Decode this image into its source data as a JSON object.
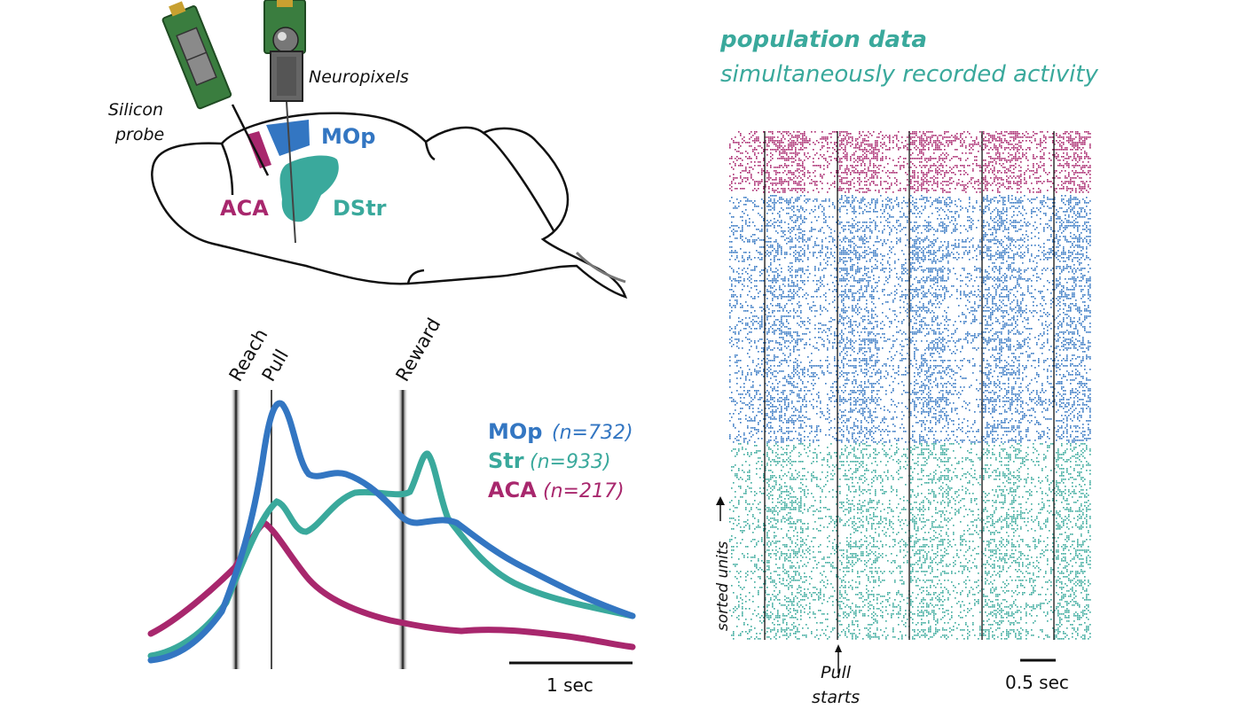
{
  "colors": {
    "mop": "#3376c2",
    "str": "#3aa99c",
    "aca": "#a8276d",
    "outline": "#111111",
    "probe_green": "#3a7d3f"
  },
  "brain_diagram": {
    "silicon_probe_label_1": "Silicon",
    "silicon_probe_label_2": "probe",
    "neuropixels_label": "Neuropixels",
    "region_mop": "MOp",
    "region_aca": "ACA",
    "region_dstr": "DStr"
  },
  "psth_panel": {
    "events": [
      "Reach",
      "Pull",
      "Reward"
    ],
    "legend": [
      {
        "region": "MOp",
        "count": "(n=732)",
        "color_key": "mop"
      },
      {
        "region": "Str",
        "count": "(n=933)",
        "color_key": "str"
      },
      {
        "region": "ACA",
        "count": "(n=217)",
        "color_key": "aca"
      }
    ],
    "scale_bar_label": "1 sec"
  },
  "raster_panel": {
    "title": "population data",
    "subtitle": "simultaneously recorded activity",
    "y_axis_label": "sorted units",
    "annotation_line1": "Pull",
    "annotation_line2": "starts",
    "scale_bar_label": "0.5 sec"
  }
}
